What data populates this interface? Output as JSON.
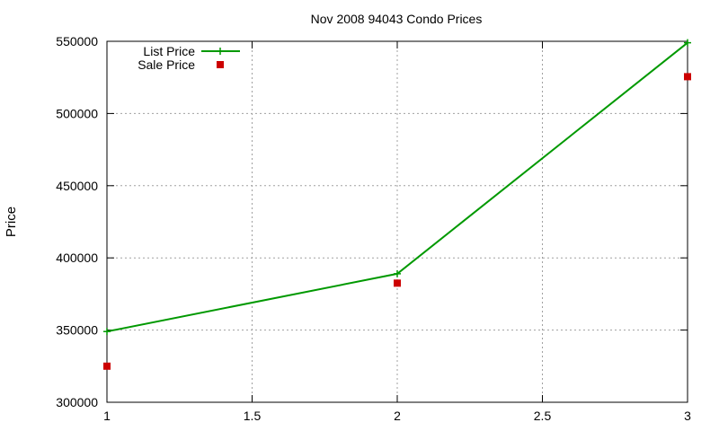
{
  "chart_data": {
    "type": "line",
    "title": "Nov 2008 94043 Condo Prices",
    "xlabel": "",
    "ylabel": "Price",
    "xlim": [
      1,
      3
    ],
    "ylim": [
      300000,
      550000
    ],
    "xticks": [
      "1",
      "1.5",
      "2",
      "2.5",
      "3"
    ],
    "xtick_values": [
      1,
      1.5,
      2,
      2.5,
      3
    ],
    "yticks": [
      "300000",
      "350000",
      "400000",
      "450000",
      "500000",
      "550000"
    ],
    "ytick_values": [
      300000,
      350000,
      400000,
      450000,
      500000,
      550000
    ],
    "grid": true,
    "legend_position": "top-left",
    "series": [
      {
        "name": "List Price",
        "style": "linespoints",
        "marker": "plus",
        "color": "#009900",
        "x": [
          1,
          2,
          3
        ],
        "y": [
          349000,
          389000,
          549000
        ]
      },
      {
        "name": "Sale Price",
        "style": "points",
        "marker": "square",
        "color": "#cc0000",
        "x": [
          1,
          2,
          3
        ],
        "y": [
          325000,
          382500,
          525500
        ]
      }
    ]
  }
}
